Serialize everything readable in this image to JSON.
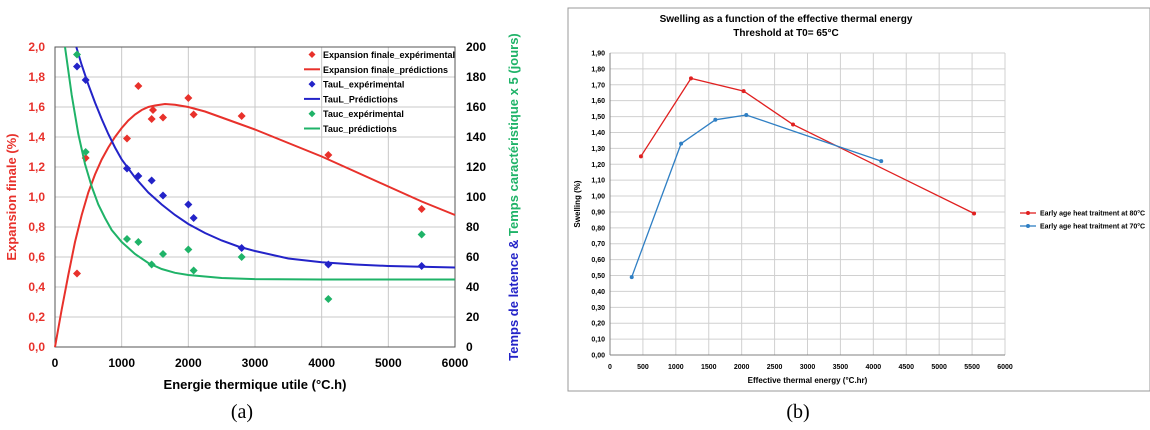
{
  "chart_data": [
    {
      "panel_label": "(a)",
      "type": "scatter",
      "title": "",
      "xlabel": "Energie thermique utile (°C.h)",
      "ylabel_left": "Expansion finale (%)",
      "ylabel_right_part1": "Temps de latence &",
      "ylabel_right_part2": "Temps caractéristique x 5 (jours)",
      "xlim": [
        0,
        6000
      ],
      "ylim_left": [
        0,
        2.0
      ],
      "ylim_right": [
        0,
        200
      ],
      "x_ticks": [
        "0",
        "1000",
        "2000",
        "3000",
        "4000",
        "5000",
        "6000"
      ],
      "yleft_ticks": [
        "0,0",
        "0,2",
        "0,4",
        "0,6",
        "0,8",
        "1,0",
        "1,2",
        "1,4",
        "1,6",
        "1,8",
        "2,0"
      ],
      "yright_ticks": [
        "0",
        "20",
        "40",
        "60",
        "80",
        "100",
        "120",
        "140",
        "160",
        "180",
        "200"
      ],
      "grid": true,
      "legend_position": "top-right",
      "colors": {
        "red": "#e8312b",
        "blue": "#2323c8",
        "green": "#1fb368"
      },
      "series": [
        {
          "name": "Expansion finale_expérimental",
          "kind": "markers",
          "axis": "left",
          "color": "#e8312b",
          "points": [
            [
              330,
              0.49
            ],
            [
              460,
              1.26
            ],
            [
              1080,
              1.39
            ],
            [
              1250,
              1.74
            ],
            [
              1450,
              1.52
            ],
            [
              1470,
              1.58
            ],
            [
              1620,
              1.53
            ],
            [
              2000,
              1.66
            ],
            [
              2080,
              1.55
            ],
            [
              2800,
              1.54
            ],
            [
              4100,
              1.28
            ],
            [
              5500,
              0.92
            ]
          ]
        },
        {
          "name": "Expansion finale_prédictions",
          "kind": "line",
          "axis": "left",
          "color": "#e8312b",
          "points": [
            [
              0,
              0.0
            ],
            [
              100,
              0.25
            ],
            [
              200,
              0.48
            ],
            [
              300,
              0.7
            ],
            [
              400,
              0.88
            ],
            [
              500,
              1.03
            ],
            [
              600,
              1.15
            ],
            [
              700,
              1.25
            ],
            [
              800,
              1.33
            ],
            [
              900,
              1.4
            ],
            [
              1000,
              1.46
            ],
            [
              1100,
              1.51
            ],
            [
              1200,
              1.55
            ],
            [
              1300,
              1.58
            ],
            [
              1400,
              1.6
            ],
            [
              1500,
              1.61
            ],
            [
              1650,
              1.62
            ],
            [
              1800,
              1.615
            ],
            [
              2000,
              1.6
            ],
            [
              2250,
              1.57
            ],
            [
              2500,
              1.53
            ],
            [
              2750,
              1.49
            ],
            [
              3000,
              1.45
            ],
            [
              3500,
              1.36
            ],
            [
              4000,
              1.27
            ],
            [
              4500,
              1.17
            ],
            [
              5000,
              1.07
            ],
            [
              5500,
              0.97
            ],
            [
              6000,
              0.88
            ]
          ]
        },
        {
          "name": "TauL_expérimental",
          "kind": "markers",
          "axis": "right",
          "color": "#2323c8",
          "points": [
            [
              330,
              187
            ],
            [
              460,
              178
            ],
            [
              1080,
              119
            ],
            [
              1250,
              114
            ],
            [
              1450,
              111
            ],
            [
              1620,
              101
            ],
            [
              2000,
              95
            ],
            [
              2080,
              86
            ],
            [
              2800,
              66
            ],
            [
              4100,
              55
            ],
            [
              5500,
              54
            ]
          ]
        },
        {
          "name": "TauL_Prédictions",
          "kind": "line",
          "axis": "right",
          "color": "#2323c8",
          "points": [
            [
              320,
              200
            ],
            [
              400,
              188
            ],
            [
              500,
              175
            ],
            [
              600,
              163
            ],
            [
              700,
              152
            ],
            [
              800,
              142
            ],
            [
              900,
              133
            ],
            [
              1000,
              125
            ],
            [
              1200,
              113
            ],
            [
              1400,
              103
            ],
            [
              1600,
              95
            ],
            [
              1800,
              88
            ],
            [
              2000,
              82
            ],
            [
              2250,
              76
            ],
            [
              2500,
              71
            ],
            [
              2750,
              67
            ],
            [
              3000,
              64
            ],
            [
              3500,
              59
            ],
            [
              4000,
              56.5
            ],
            [
              4500,
              55
            ],
            [
              5000,
              54
            ],
            [
              5500,
              53.5
            ],
            [
              6000,
              53
            ]
          ]
        },
        {
          "name": "Tauc_expérimental",
          "kind": "markers",
          "axis": "right",
          "color": "#1fb368",
          "points": [
            [
              330,
              195
            ],
            [
              460,
              130
            ],
            [
              1080,
              72
            ],
            [
              1250,
              70
            ],
            [
              1450,
              55
            ],
            [
              1620,
              62
            ],
            [
              2000,
              65
            ],
            [
              2080,
              51
            ],
            [
              2800,
              60
            ],
            [
              4100,
              32
            ],
            [
              5500,
              75
            ]
          ]
        },
        {
          "name": "Tauc_prédictions",
          "kind": "line",
          "axis": "right",
          "color": "#1fb368",
          "points": [
            [
              150,
              200
            ],
            [
              250,
              168
            ],
            [
              350,
              142
            ],
            [
              450,
              122
            ],
            [
              550,
              107
            ],
            [
              650,
              95
            ],
            [
              750,
              86
            ],
            [
              850,
              78
            ],
            [
              1000,
              70
            ],
            [
              1200,
              62
            ],
            [
              1400,
              56
            ],
            [
              1600,
              52
            ],
            [
              1800,
              49.5
            ],
            [
              2000,
              48
            ],
            [
              2500,
              46
            ],
            [
              3000,
              45.3
            ],
            [
              4000,
              45
            ],
            [
              5000,
              45
            ],
            [
              6000,
              45
            ]
          ]
        }
      ]
    },
    {
      "panel_label": "(b)",
      "type": "line",
      "title": "Swelling as a function of the effective thermal energy",
      "subtitle": "Threshold at T0= 65°C",
      "xlabel": "Effective thermal energy (°C.hr)",
      "ylabel": "Swelling  (%)",
      "xlim": [
        0,
        6000
      ],
      "ylim": [
        0,
        1.9
      ],
      "x_ticks": [
        "0",
        "500",
        "1000",
        "1500",
        "2000",
        "2500",
        "3000",
        "3500",
        "4000",
        "4500",
        "5000",
        "5500",
        "6000"
      ],
      "y_ticks": [
        "0,00",
        "0,10",
        "0,20",
        "0,30",
        "0,40",
        "0,50",
        "0,60",
        "0,70",
        "0,80",
        "0,90",
        "1,00",
        "1,10",
        "1,20",
        "1,30",
        "1,40",
        "1,50",
        "1,60",
        "1,70",
        "1,80",
        "1,90"
      ],
      "grid": true,
      "legend_position": "right",
      "series": [
        {
          "name": "Early age heat traitment at 80°C",
          "color": "#e02020",
          "points": [
            [
              470,
              1.25
            ],
            [
              1230,
              1.74
            ],
            [
              2030,
              1.66
            ],
            [
              2780,
              1.45
            ],
            [
              5530,
              0.89
            ]
          ]
        },
        {
          "name": "Early age heat traitment at 70°C",
          "color": "#2f7fc4",
          "points": [
            [
              330,
              0.49
            ],
            [
              1080,
              1.33
            ],
            [
              1600,
              1.48
            ],
            [
              2070,
              1.51
            ],
            [
              4120,
              1.22
            ]
          ]
        }
      ]
    }
  ]
}
